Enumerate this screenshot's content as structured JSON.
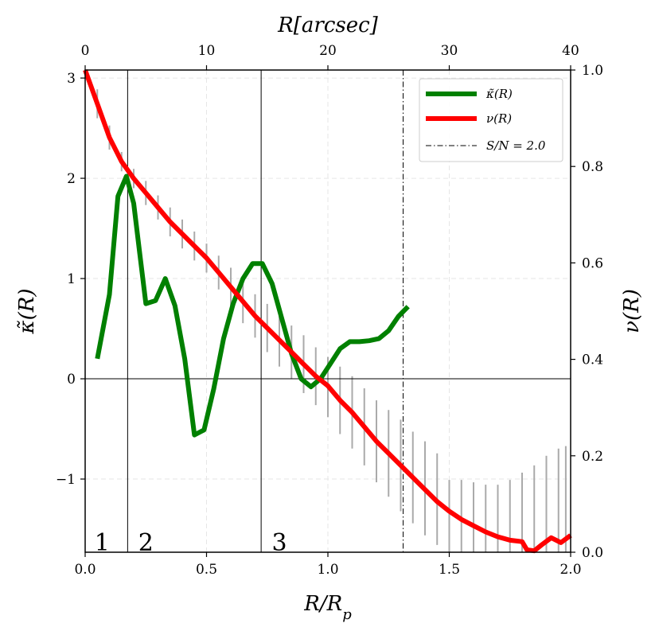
{
  "chart_data": {
    "type": "line",
    "xlabel": "R/R_p",
    "ylabel_left": "κ̃(R)",
    "ylabel_right": "ν(R)",
    "xlabel_top": "R[arcsec]",
    "xlim": [
      0,
      2
    ],
    "ylim_left": [
      -1.73,
      3.08
    ],
    "ylim_right": [
      0,
      1
    ],
    "xlim_top": [
      0,
      40
    ],
    "x_ticks": [
      "0.0",
      "0.5",
      "1.0",
      "1.5",
      "2.0"
    ],
    "x_tick_values": [
      0,
      0.5,
      1.0,
      1.5,
      2.0
    ],
    "y_left_ticks": [
      "−1",
      "0",
      "1",
      "2",
      "3"
    ],
    "y_left_tick_values": [
      -1,
      0,
      1,
      2,
      3
    ],
    "y_right_ticks": [
      "0.0",
      "0.2",
      "0.4",
      "0.6",
      "0.8",
      "1.0"
    ],
    "y_right_tick_values": [
      0,
      0.2,
      0.4,
      0.6,
      0.8,
      1.0
    ],
    "x_top_ticks": [
      "0",
      "10",
      "20",
      "30",
      "40"
    ],
    "x_top_tick_values": [
      0,
      10,
      20,
      30,
      40
    ],
    "grid": true,
    "region_lines_x": [
      0.175,
      0.725
    ],
    "region_labels": [
      {
        "text": "1",
        "x": 0.07
      },
      {
        "text": "2",
        "x": 0.25
      },
      {
        "text": "3",
        "x": 0.8
      }
    ],
    "sn_line_x": 1.31,
    "legend_position": "top-right",
    "series": [
      {
        "name": "κ̃(R)",
        "label": "κ̃(R)",
        "color": "#008000",
        "axis": "left",
        "x": [
          0.05,
          0.1,
          0.135,
          0.17,
          0.2,
          0.225,
          0.25,
          0.29,
          0.33,
          0.37,
          0.41,
          0.45,
          0.49,
          0.53,
          0.57,
          0.61,
          0.65,
          0.69,
          0.73,
          0.77,
          0.81,
          0.85,
          0.89,
          0.93,
          0.97,
          1.01,
          1.05,
          1.09,
          1.13,
          1.17,
          1.21,
          1.25,
          1.29,
          1.33
        ],
        "y": [
          0.2,
          0.84,
          1.82,
          2.02,
          1.75,
          1.25,
          0.75,
          0.78,
          1.0,
          0.73,
          0.2,
          -0.56,
          -0.51,
          -0.1,
          0.4,
          0.75,
          1.0,
          1.15,
          1.15,
          0.95,
          0.6,
          0.25,
          0.0,
          -0.08,
          0.0,
          0.15,
          0.3,
          0.37,
          0.37,
          0.38,
          0.4,
          0.48,
          0.62,
          0.72
        ]
      },
      {
        "name": "ν(R)",
        "label": "ν(R)",
        "color": "#ff0000",
        "axis": "right",
        "x": [
          0.0,
          0.05,
          0.1,
          0.15,
          0.2,
          0.25,
          0.3,
          0.35,
          0.4,
          0.45,
          0.5,
          0.55,
          0.6,
          0.65,
          0.7,
          0.75,
          0.8,
          0.85,
          0.9,
          0.95,
          1.0,
          1.05,
          1.1,
          1.15,
          1.2,
          1.25,
          1.3,
          1.35,
          1.4,
          1.45,
          1.5,
          1.55,
          1.6,
          1.65,
          1.7,
          1.75,
          1.8,
          1.82,
          1.85,
          1.88,
          1.92,
          1.96,
          2.0
        ],
        "y": [
          1.0,
          0.93,
          0.86,
          0.81,
          0.775,
          0.745,
          0.715,
          0.685,
          0.66,
          0.635,
          0.61,
          0.58,
          0.55,
          0.52,
          0.49,
          0.465,
          0.44,
          0.415,
          0.39,
          0.365,
          0.345,
          0.315,
          0.29,
          0.26,
          0.23,
          0.205,
          0.18,
          0.155,
          0.13,
          0.105,
          0.085,
          0.068,
          0.055,
          0.042,
          0.032,
          0.025,
          0.022,
          0.005,
          0.003,
          0.015,
          0.03,
          0.02,
          0.035
        ]
      },
      {
        "name": "S/N = 2.0",
        "label": "S/N = 2.0",
        "color": "#000000",
        "style": "dashdot"
      }
    ],
    "error_bars": {
      "color": "#aaaaaa",
      "axis": "right",
      "x": [
        0.05,
        0.1,
        0.15,
        0.2,
        0.25,
        0.3,
        0.35,
        0.4,
        0.45,
        0.5,
        0.55,
        0.6,
        0.65,
        0.7,
        0.75,
        0.8,
        0.85,
        0.9,
        0.95,
        1.0,
        1.05,
        1.1,
        1.15,
        1.2,
        1.25,
        1.3,
        1.35,
        1.4,
        1.45,
        1.5,
        1.55,
        1.6,
        1.65,
        1.7,
        1.75,
        1.8,
        1.85,
        1.9,
        1.95,
        1.98
      ],
      "low": [
        0.9,
        0.835,
        0.79,
        0.755,
        0.72,
        0.69,
        0.655,
        0.63,
        0.605,
        0.58,
        0.545,
        0.51,
        0.475,
        0.445,
        0.415,
        0.385,
        0.36,
        0.33,
        0.305,
        0.28,
        0.245,
        0.215,
        0.18,
        0.145,
        0.115,
        0.085,
        0.06,
        0.035,
        0.015,
        0.0,
        0.0,
        0.0,
        0.0,
        0.0,
        0.0,
        0.0,
        0.0,
        0.0,
        0.0,
        0.0
      ],
      "high": [
        0.96,
        0.885,
        0.83,
        0.795,
        0.77,
        0.74,
        0.715,
        0.69,
        0.665,
        0.64,
        0.615,
        0.59,
        0.565,
        0.535,
        0.515,
        0.495,
        0.47,
        0.45,
        0.425,
        0.405,
        0.385,
        0.365,
        0.34,
        0.315,
        0.295,
        0.275,
        0.25,
        0.23,
        0.205,
        0.15,
        0.15,
        0.145,
        0.14,
        0.14,
        0.15,
        0.165,
        0.18,
        0.2,
        0.215,
        0.22
      ]
    }
  }
}
